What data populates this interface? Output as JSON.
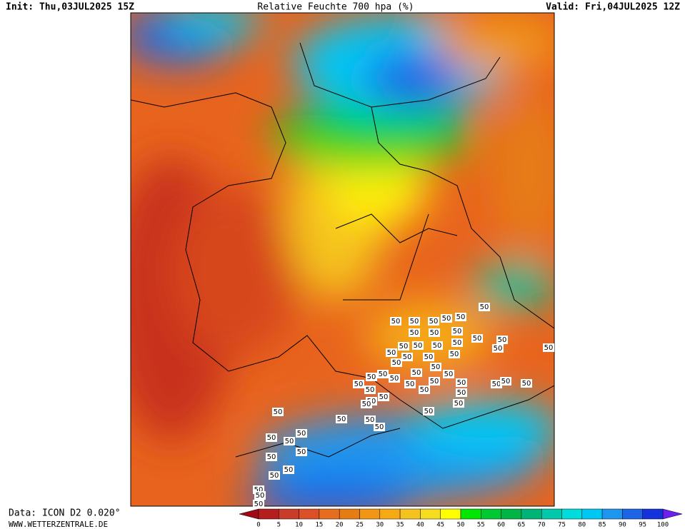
{
  "header": {
    "init": "Init: Thu,03JUL2025 15Z",
    "title": "Relative Feuchte 700 hpa (%)",
    "valid": "Valid: Fri,04JUL2025 12Z"
  },
  "footer": {
    "data_source": "Data: ICON D2 0.020°",
    "website": "WWW.WETTERZENTRALE.DE"
  },
  "colorbar": {
    "ticks": [
      0,
      5,
      10,
      15,
      20,
      25,
      30,
      35,
      40,
      45,
      50,
      55,
      60,
      65,
      70,
      75,
      80,
      85,
      90,
      95,
      100
    ],
    "under_color": "#a00a14",
    "colors": [
      "#b41e1e",
      "#c83c28",
      "#dc5028",
      "#e66e1e",
      "#e67d14",
      "#f09614",
      "#f5aa14",
      "#f5c31e",
      "#f5dc1e",
      "#ffff00",
      "#00e600",
      "#00c832",
      "#00b446",
      "#00b478",
      "#00c8aa",
      "#00dcdc",
      "#00c8f5",
      "#1e96f0",
      "#1e64e6",
      "#1432dc"
    ],
    "over_color": "#6e1ef0"
  },
  "contour_label": "50"
}
